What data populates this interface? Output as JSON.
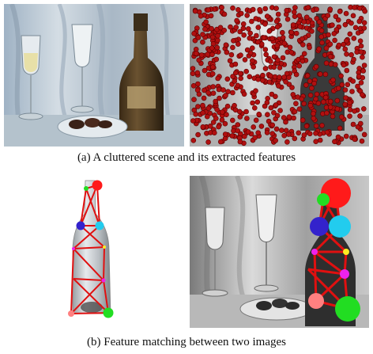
{
  "figure": {
    "caption_a": "(a) A cluttered scene and its extracted features",
    "caption_b": "(b) Feature matching between two images"
  },
  "colors": {
    "feature_point": "#b01010",
    "match_edge": "#e01010",
    "node_red": "#ff1a1a",
    "node_green": "#22dd22",
    "node_blue": "#3322cc",
    "node_cyan": "#22ccee",
    "node_magenta": "#ee22ee",
    "node_yellow": "#ffee22",
    "node_pink": "#ff8080"
  },
  "icons": [
    "color-scene-image",
    "feature-points-image",
    "bottle-model-image",
    "grayscale-scene-image"
  ]
}
